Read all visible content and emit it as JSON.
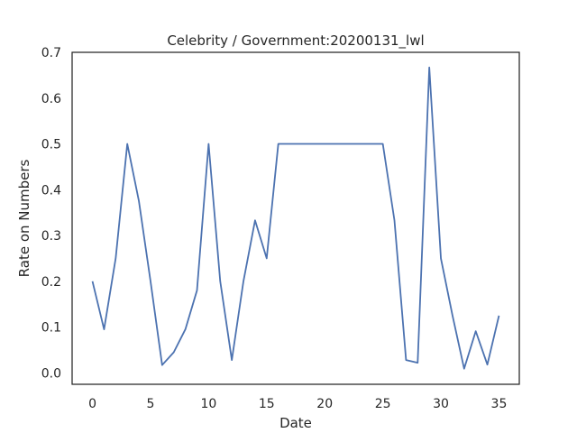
{
  "chart_data": {
    "type": "line",
    "title": "Celebrity / Government:20200131_lwl",
    "xlabel": "Date",
    "ylabel": "Rate on Numbers",
    "xlim": [
      -1.75,
      36.75
    ],
    "ylim": [
      -0.025,
      0.7
    ],
    "xticks": [
      0,
      5,
      10,
      15,
      20,
      25,
      30,
      35
    ],
    "yticks": [
      0.0,
      0.1,
      0.2,
      0.3,
      0.4,
      0.5,
      0.6,
      0.7
    ],
    "ytick_labels": [
      "0.0",
      "0.1",
      "0.2",
      "0.3",
      "0.4",
      "0.5",
      "0.6",
      "0.7"
    ],
    "grid": false,
    "series": [
      {
        "color": "#4c72b0",
        "x": [
          0,
          1,
          2,
          3,
          4,
          5,
          6,
          7,
          8,
          9,
          10,
          11,
          12,
          13,
          14,
          15,
          16,
          17,
          18,
          19,
          20,
          21,
          22,
          23,
          24,
          25,
          26,
          27,
          28,
          29,
          30,
          31,
          32,
          33,
          34,
          35
        ],
        "values": [
          0.2,
          0.095,
          0.25,
          0.5,
          0.375,
          0.2,
          0.017,
          0.045,
          0.095,
          0.18,
          0.5,
          0.2,
          0.028,
          0.2,
          0.333,
          0.25,
          0.5,
          0.5,
          0.5,
          0.5,
          0.5,
          0.5,
          0.5,
          0.5,
          0.5,
          0.5,
          0.333,
          0.028,
          0.022,
          0.667,
          0.25,
          0.125,
          0.009,
          0.091,
          0.018,
          0.125
        ]
      }
    ]
  }
}
